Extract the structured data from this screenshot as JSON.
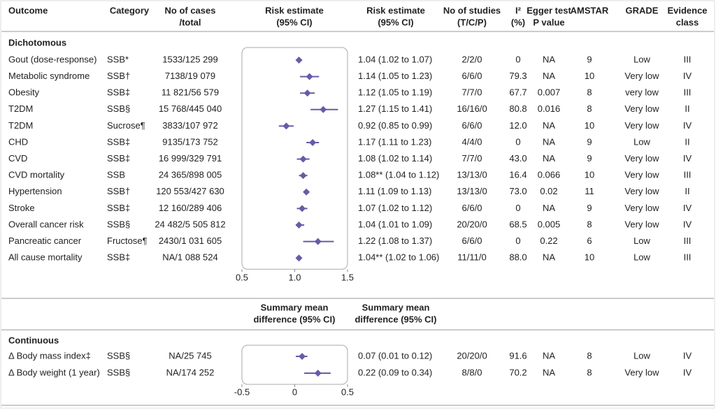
{
  "header": [
    [
      "Outcome"
    ],
    [
      "Category"
    ],
    [
      "No of cases",
      "/total"
    ],
    [
      "Risk estimate",
      "(95% CI)"
    ],
    [
      "Risk estimate",
      "(95% CI)"
    ],
    [
      "No of studies",
      "(T/C/P)"
    ],
    [
      "I²",
      "(%)"
    ],
    [
      "Egger test",
      "P value"
    ],
    [
      "AMSTAR"
    ],
    [
      "GRADE"
    ],
    [
      "Evidence",
      "class"
    ]
  ],
  "sections": [
    {
      "title": "Dichotomous",
      "xlim": [
        0.5,
        1.5
      ],
      "xticks": [
        0.5,
        {
          "value": 1,
          "label": "1.0"
        },
        1.5
      ],
      "rows": [
        {
          "outcome": "Gout (dose-response)",
          "category": "SSB*",
          "cases": "1533/125 299",
          "estimate": 1.04,
          "lower": 1.02,
          "upper": 1.07,
          "estimate_label": "1.04 (1.02 to 1.07)",
          "studies": "2/2/0",
          "i2": "0",
          "egger": "NA",
          "amstar": "9",
          "grade": "Low",
          "evidence": "III"
        },
        {
          "outcome": "Metabolic syndrome",
          "category": "SSB†",
          "cases": "7138/19 079",
          "estimate": 1.14,
          "lower": 1.05,
          "upper": 1.23,
          "estimate_label": "1.14 (1.05 to 1.23)",
          "studies": "6/6/0",
          "i2": "79.3",
          "egger": "NA",
          "amstar": "10",
          "grade": "Very low",
          "evidence": "IV"
        },
        {
          "outcome": "Obesity",
          "category": "SSB‡",
          "cases": "11 821/56 579",
          "estimate": 1.12,
          "lower": 1.05,
          "upper": 1.19,
          "estimate_label": "1.12 (1.05 to 1.19)",
          "studies": "7/7/0",
          "i2": "67.7",
          "egger": "0.007",
          "amstar": "8",
          "grade": "very low",
          "evidence": "III"
        },
        {
          "outcome": "T2DM",
          "category": "SSB§",
          "cases": "15 768/445 040",
          "estimate": 1.27,
          "lower": 1.15,
          "upper": 1.41,
          "estimate_label": "1.27 (1.15 to 1.41)",
          "studies": "16/16/0",
          "i2": "80.8",
          "egger": "0.016",
          "amstar": "8",
          "grade": "Very low",
          "evidence": "II"
        },
        {
          "outcome": "T2DM",
          "category": "Sucrose¶",
          "cases": "3833/107 972",
          "estimate": 0.92,
          "lower": 0.85,
          "upper": 0.99,
          "estimate_label": "0.92 (0.85 to 0.99)",
          "studies": "6/6/0",
          "i2": "12.0",
          "egger": "NA",
          "amstar": "10",
          "grade": "Very low",
          "evidence": "IV"
        },
        {
          "outcome": "CHD",
          "category": "SSB‡",
          "cases": "9135/173 752",
          "estimate": 1.17,
          "lower": 1.11,
          "upper": 1.23,
          "estimate_label": "1.17 (1.11 to 1.23)",
          "studies": "4/4/0",
          "i2": "0",
          "egger": "NA",
          "amstar": "9",
          "grade": "Low",
          "evidence": "II"
        },
        {
          "outcome": "CVD",
          "category": "SSB‡",
          "cases": "16 999/329 791",
          "estimate": 1.08,
          "lower": 1.02,
          "upper": 1.14,
          "estimate_label": "1.08 (1.02 to 1.14)",
          "studies": "7/7/0",
          "i2": "43.0",
          "egger": "NA",
          "amstar": "9",
          "grade": "Very low",
          "evidence": "IV"
        },
        {
          "outcome": "CVD mortality",
          "category": "SSB",
          "cases": "24 365/898 005",
          "estimate": 1.08,
          "lower": 1.04,
          "upper": 1.12,
          "estimate_label": "1.08** (1.04 to 1.12)",
          "studies": "13/13/0",
          "i2": "16.4",
          "egger": "0.066",
          "amstar": "10",
          "grade": "Very low",
          "evidence": "III"
        },
        {
          "outcome": "Hypertension",
          "category": "SSB†",
          "cases": "120 553/427 630",
          "estimate": 1.11,
          "lower": 1.09,
          "upper": 1.13,
          "estimate_label": "1.11 (1.09 to 1.13)",
          "studies": "13/13/0",
          "i2": "73.0",
          "egger": "0.02",
          "amstar": "11",
          "grade": "Very low",
          "evidence": "II"
        },
        {
          "outcome": "Stroke",
          "category": "SSB‡",
          "cases": "12 160/289 406",
          "estimate": 1.07,
          "lower": 1.02,
          "upper": 1.12,
          "estimate_label": "1.07 (1.02 to 1.12)",
          "studies": "6/6/0",
          "i2": "0",
          "egger": "NA",
          "amstar": "9",
          "grade": "Very low",
          "evidence": "IV"
        },
        {
          "outcome": "Overall cancer risk",
          "category": "SSB§",
          "cases": "24 482/5 505 812",
          "estimate": 1.04,
          "lower": 1.01,
          "upper": 1.09,
          "estimate_label": "1.04 (1.01 to 1.09)",
          "studies": "20/20/0",
          "i2": "68.5",
          "egger": "0.005",
          "amstar": "8",
          "grade": "Very low",
          "evidence": "IV"
        },
        {
          "outcome": "Pancreatic cancer",
          "category": "Fructose¶",
          "cases": "2430/1 031 605",
          "estimate": 1.22,
          "lower": 1.08,
          "upper": 1.37,
          "estimate_label": "1.22 (1.08 to 1.37)",
          "studies": "6/6/0",
          "i2": "0",
          "egger": "0.22",
          "amstar": "6",
          "grade": "Low",
          "evidence": "III"
        },
        {
          "outcome": "All cause mortality",
          "category": "SSB‡",
          "cases": "NA/1 088 524",
          "estimate": 1.04,
          "lower": 1.02,
          "upper": 1.06,
          "estimate_label": "1.04** (1.02 to 1.06)",
          "studies": "11/11/0",
          "i2": "88.0",
          "egger": "NA",
          "amstar": "10",
          "grade": "Low",
          "evidence": "III"
        }
      ]
    },
    {
      "title": "Continuous",
      "subheader": [
        [
          "Summary mean",
          "difference (95% CI)"
        ],
        [
          "Summary mean",
          "difference (95% CI)"
        ]
      ],
      "xlim": [
        -0.5,
        0.5
      ],
      "xticks": [
        -0.5,
        0,
        0.5
      ],
      "rows": [
        {
          "outcome": "Δ Body mass index‡",
          "category": "SSB§",
          "cases": "NA/25 745",
          "estimate": 0.07,
          "lower": 0.01,
          "upper": 0.12,
          "estimate_label": "0.07 (0.01 to 0.12)",
          "studies": "20/20/0",
          "i2": "91.6",
          "egger": "NA",
          "amstar": "8",
          "grade": "Low",
          "evidence": "IV"
        },
        {
          "outcome": "Δ Body weight (1 year)",
          "category": "SSB§",
          "cases": "NA/174 252",
          "estimate": 0.22,
          "lower": 0.09,
          "upper": 0.34,
          "estimate_label": "0.22 (0.09 to 0.34)",
          "studies": "8/8/0",
          "i2": "70.2",
          "egger": "NA",
          "amstar": "8",
          "grade": "Very low",
          "evidence": "IV"
        }
      ]
    }
  ]
}
